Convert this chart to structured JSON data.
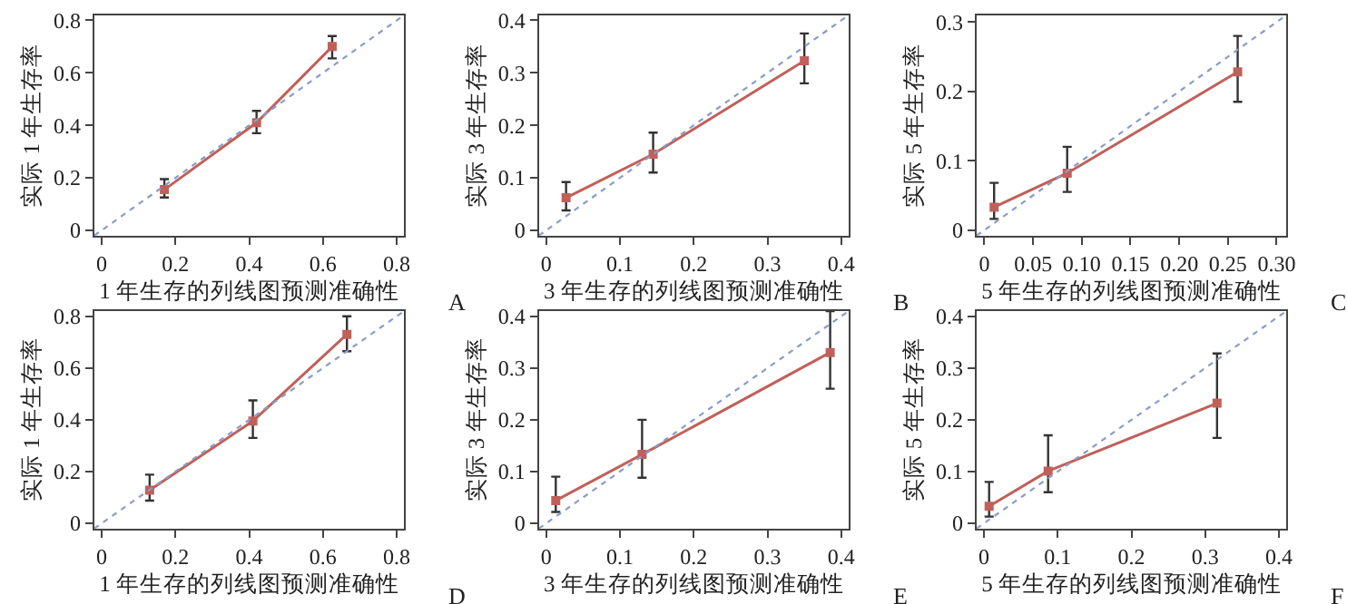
{
  "chart_data": [
    {
      "type": "line",
      "xlabel": "1 年生存的列线图预测准确性",
      "ylabel": "实际 1 年生存率",
      "annotations": [
        "A"
      ],
      "xlim": [
        -0.02,
        0.82
      ],
      "ylim": [
        -0.02,
        0.82
      ],
      "xticks": [
        0,
        0.2,
        0.4,
        0.6,
        0.8
      ],
      "yticks": [
        0,
        0.2,
        0.4,
        0.6,
        0.8
      ],
      "series": [
        {
          "color": "#c0605a",
          "marker": "square",
          "x": [
            0.17,
            0.42,
            0.625
          ],
          "values": [
            0.155,
            0.41,
            0.7
          ],
          "errors": [
            [
              0.125,
              0.195
            ],
            [
              0.37,
              0.455
            ],
            [
              0.655,
              0.74
            ]
          ]
        },
        {
          "color": "#8a9cc8",
          "marker": "none",
          "line_style": "dotted",
          "x": [
            -0.02,
            0.82
          ],
          "values": [
            -0.02,
            0.82
          ]
        }
      ]
    },
    {
      "type": "line",
      "xlabel": "3 年生存的列线图预测准确性",
      "ylabel": "实际 3 年生存率",
      "annotations": [
        "B"
      ],
      "xlim": [
        -0.01,
        0.41
      ],
      "ylim": [
        -0.01,
        0.41
      ],
      "xticks": [
        0,
        0.1,
        0.2,
        0.3,
        0.4
      ],
      "yticks": [
        0,
        0.1,
        0.2,
        0.3,
        0.4
      ],
      "series": [
        {
          "color": "#c0605a",
          "marker": "square",
          "x": [
            0.027,
            0.145,
            0.35
          ],
          "values": [
            0.062,
            0.145,
            0.323
          ],
          "errors": [
            [
              0.038,
              0.092
            ],
            [
              0.11,
              0.186
            ],
            [
              0.28,
              0.375
            ]
          ]
        },
        {
          "color": "#8a9cc8",
          "marker": "none",
          "line_style": "dotted",
          "x": [
            -0.01,
            0.41
          ],
          "values": [
            -0.01,
            0.41
          ]
        }
      ]
    },
    {
      "type": "line",
      "xlabel": "5 年生存的列线图预测准确性",
      "ylabel": "实际 5 年生存率",
      "annotations": [
        "C"
      ],
      "xlim": [
        -0.008,
        0.31
      ],
      "ylim": [
        -0.008,
        0.31
      ],
      "xticks": [
        0,
        {
          "value": 0.05,
          "label": "0.05"
        },
        {
          "value": 0.1,
          "label": "0.10"
        },
        0.15,
        {
          "value": 0.2,
          "label": "0.20"
        },
        0.25,
        {
          "value": 0.3,
          "label": "0.30"
        }
      ],
      "yticks": [
        0,
        0.1,
        0.2,
        0.3
      ],
      "series": [
        {
          "color": "#c0605a",
          "marker": "square",
          "x": [
            0.01,
            0.085,
            0.26
          ],
          "values": [
            0.033,
            0.082,
            0.228
          ],
          "errors": [
            [
              0.016,
              0.068
            ],
            [
              0.055,
              0.12
            ],
            [
              0.185,
              0.28
            ]
          ]
        },
        {
          "color": "#8a9cc8",
          "marker": "none",
          "line_style": "dotted",
          "x": [
            -0.008,
            0.31
          ],
          "values": [
            -0.008,
            0.31
          ]
        }
      ]
    },
    {
      "type": "line",
      "xlabel": "1 年生存的列线图预测准确性",
      "ylabel": "实际 1 年生存率",
      "annotations": [
        "D"
      ],
      "xlim": [
        -0.02,
        0.82
      ],
      "ylim": [
        -0.02,
        0.82
      ],
      "xticks": [
        0,
        0.2,
        0.4,
        0.6,
        0.8
      ],
      "yticks": [
        0,
        0.2,
        0.4,
        0.6,
        0.8
      ],
      "series": [
        {
          "color": "#c0605a",
          "marker": "square",
          "x": [
            0.13,
            0.41,
            0.665
          ],
          "values": [
            0.128,
            0.395,
            0.73
          ],
          "errors": [
            [
              0.088,
              0.188
            ],
            [
              0.33,
              0.475
            ],
            [
              0.665,
              0.8
            ]
          ]
        },
        {
          "color": "#8a9cc8",
          "marker": "none",
          "line_style": "dotted",
          "x": [
            -0.02,
            0.82
          ],
          "values": [
            -0.02,
            0.82
          ]
        }
      ]
    },
    {
      "type": "line",
      "xlabel": "3 年生存的列线图预测准确性",
      "ylabel": "实际 3 年生存率",
      "annotations": [
        "E"
      ],
      "xlim": [
        -0.01,
        0.41
      ],
      "ylim": [
        -0.01,
        0.41
      ],
      "xticks": [
        0,
        0.1,
        0.2,
        0.3,
        0.4
      ],
      "yticks": [
        0,
        0.1,
        0.2,
        0.3,
        0.4
      ],
      "series": [
        {
          "color": "#c0605a",
          "marker": "square",
          "x": [
            0.013,
            0.13,
            0.385
          ],
          "values": [
            0.044,
            0.133,
            0.33
          ],
          "errors": [
            [
              0.022,
              0.09
            ],
            [
              0.088,
              0.2
            ],
            [
              0.26,
              0.41
            ]
          ]
        },
        {
          "color": "#8a9cc8",
          "marker": "none",
          "line_style": "dotted",
          "x": [
            -0.01,
            0.41
          ],
          "values": [
            -0.01,
            0.41
          ]
        }
      ]
    },
    {
      "type": "line",
      "xlabel": "5 年生存的列线图预测准确性",
      "ylabel": "实际 5 年生存率",
      "annotations": [
        "F"
      ],
      "xlim": [
        -0.01,
        0.41
      ],
      "ylim": [
        -0.01,
        0.41
      ],
      "xticks": [
        0,
        0.1,
        0.2,
        0.3,
        0.4
      ],
      "yticks": [
        0,
        0.1,
        0.2,
        0.3,
        0.4
      ],
      "series": [
        {
          "color": "#c0605a",
          "marker": "square",
          "x": [
            0.007,
            0.087,
            0.316
          ],
          "values": [
            0.033,
            0.101,
            0.232
          ],
          "errors": [
            [
              0.013,
              0.08
            ],
            [
              0.06,
              0.17
            ],
            [
              0.165,
              0.328
            ]
          ]
        },
        {
          "color": "#8a9cc8",
          "marker": "none",
          "line_style": "dotted",
          "x": [
            -0.01,
            0.41
          ],
          "values": [
            -0.01,
            0.41
          ]
        }
      ]
    }
  ]
}
